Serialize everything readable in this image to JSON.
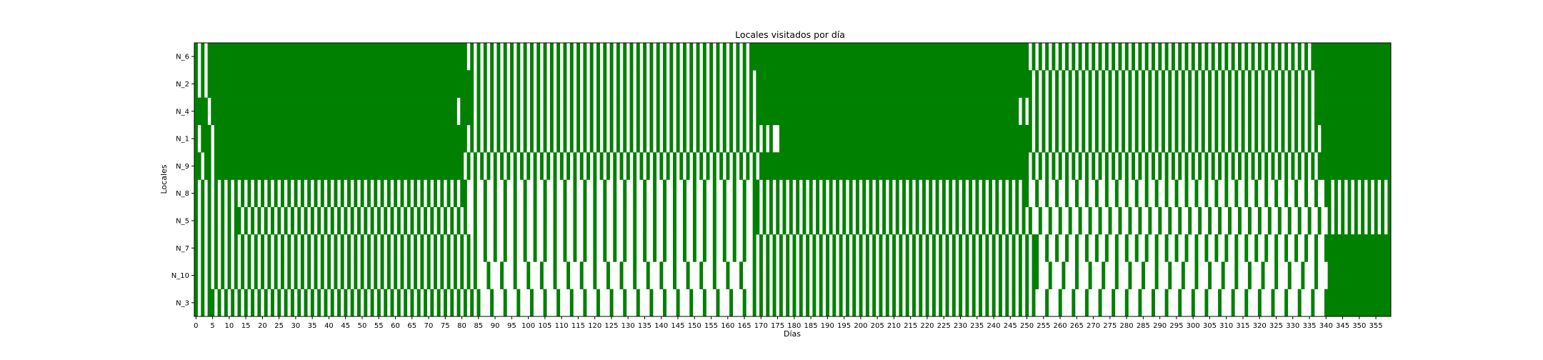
{
  "chart_data": {
    "type": "heatmap",
    "title": "Locales visitados por día",
    "xlabel": "Días",
    "ylabel": "Locales",
    "rows": [
      "N_6",
      "N_2",
      "N_4",
      "N_1",
      "N_9",
      "N_8",
      "N_5",
      "N_7",
      "N_10",
      "N_3"
    ],
    "x_range": [
      0,
      359
    ],
    "x_tick_step": 5,
    "grid": false,
    "legend": "none",
    "colors": {
      "visited": "#008000",
      "not_visited": "#ffffff"
    },
    "value_encoding": "1 = visitado (verde), 0 = no visitado (blanco)",
    "row_patterns": [
      {
        "row": "N_6",
        "segments": [
          {
            "from": 0,
            "to": 3,
            "pattern": [
              1,
              0
            ]
          },
          {
            "from": 4,
            "to": 80,
            "pattern": [
              1
            ]
          },
          {
            "from": 81,
            "to": 167,
            "pattern": [
              1,
              0
            ]
          },
          {
            "from": 168,
            "to": 249,
            "pattern": [
              1
            ]
          },
          {
            "from": 250,
            "to": 336,
            "pattern": [
              1,
              0
            ]
          },
          {
            "from": 337,
            "to": 359,
            "pattern": [
              1
            ]
          }
        ]
      },
      {
        "row": "N_2",
        "segments": [
          {
            "from": 0,
            "to": 3,
            "pattern": [
              1,
              0
            ]
          },
          {
            "from": 4,
            "to": 82,
            "pattern": [
              1
            ]
          },
          {
            "from": 83,
            "to": 168,
            "pattern": [
              1,
              0
            ]
          },
          {
            "from": 169,
            "to": 250,
            "pattern": [
              1
            ]
          },
          {
            "from": 251,
            "to": 337,
            "pattern": [
              1,
              0
            ]
          },
          {
            "from": 338,
            "to": 359,
            "pattern": [
              1
            ]
          }
        ]
      },
      {
        "row": "N_4",
        "segments": [
          {
            "from": 0,
            "to": 3,
            "pattern": [
              1
            ]
          },
          {
            "from": 4,
            "to": 4,
            "pattern": [
              0
            ]
          },
          {
            "from": 5,
            "to": 78,
            "pattern": [
              1
            ]
          },
          {
            "from": 79,
            "to": 79,
            "pattern": [
              0
            ]
          },
          {
            "from": 80,
            "to": 82,
            "pattern": [
              1
            ]
          },
          {
            "from": 83,
            "to": 168,
            "pattern": [
              1,
              0
            ]
          },
          {
            "from": 169,
            "to": 247,
            "pattern": [
              1
            ]
          },
          {
            "from": 248,
            "to": 337,
            "pattern": [
              0,
              1
            ]
          },
          {
            "from": 338,
            "to": 359,
            "pattern": [
              1
            ]
          }
        ]
      },
      {
        "row": "N_1",
        "segments": [
          {
            "from": 0,
            "to": 1,
            "pattern": [
              1,
              0
            ]
          },
          {
            "from": 2,
            "to": 4,
            "pattern": [
              1
            ]
          },
          {
            "from": 5,
            "to": 5,
            "pattern": [
              0
            ]
          },
          {
            "from": 6,
            "to": 80,
            "pattern": [
              1
            ]
          },
          {
            "from": 81,
            "to": 172,
            "pattern": [
              1,
              0
            ]
          },
          {
            "from": 173,
            "to": 175,
            "pattern": [
              1,
              0,
              0
            ]
          },
          {
            "from": 176,
            "to": 250,
            "pattern": [
              1
            ]
          },
          {
            "from": 251,
            "to": 339,
            "pattern": [
              1,
              0
            ]
          },
          {
            "from": 340,
            "to": 359,
            "pattern": [
              1
            ]
          }
        ]
      },
      {
        "row": "N_9",
        "segments": [
          {
            "from": 0,
            "to": 7,
            "pattern": [
              1,
              1,
              0
            ]
          },
          {
            "from": 8,
            "to": 79,
            "pattern": [
              1
            ]
          },
          {
            "from": 80,
            "to": 169,
            "pattern": [
              1,
              0
            ]
          },
          {
            "from": 170,
            "to": 249,
            "pattern": [
              1
            ]
          },
          {
            "from": 250,
            "to": 338,
            "pattern": [
              1,
              0
            ]
          },
          {
            "from": 339,
            "to": 359,
            "pattern": [
              1
            ]
          }
        ]
      },
      {
        "row": "N_8",
        "segments": [
          {
            "from": 0,
            "to": 80,
            "pattern": [
              1,
              0
            ]
          },
          {
            "from": 81,
            "to": 168,
            "pattern": [
              1,
              0,
              0
            ]
          },
          {
            "from": 169,
            "to": 249,
            "pattern": [
              1,
              0
            ]
          },
          {
            "from": 250,
            "to": 340,
            "pattern": [
              1,
              0,
              0
            ]
          },
          {
            "from": 341,
            "to": 359,
            "pattern": [
              1,
              0
            ]
          }
        ]
      },
      {
        "row": "N_5",
        "segments": [
          {
            "from": 0,
            "to": 12,
            "pattern": [
              1,
              0
            ]
          },
          {
            "from": 13,
            "to": 80,
            "pattern": [
              1,
              0
            ]
          },
          {
            "from": 81,
            "to": 168,
            "pattern": [
              1,
              0,
              0
            ]
          },
          {
            "from": 169,
            "to": 250,
            "pattern": [
              1,
              0
            ]
          },
          {
            "from": 251,
            "to": 340,
            "pattern": [
              1,
              0,
              0
            ]
          },
          {
            "from": 341,
            "to": 359,
            "pattern": [
              1,
              0
            ]
          }
        ]
      },
      {
        "row": "N_7",
        "segments": [
          {
            "from": 0,
            "to": 3,
            "pattern": [
              1,
              0
            ]
          },
          {
            "from": 4,
            "to": 83,
            "pattern": [
              1,
              0
            ]
          },
          {
            "from": 84,
            "to": 167,
            "pattern": [
              1,
              0,
              0
            ]
          },
          {
            "from": 168,
            "to": 252,
            "pattern": [
              1,
              0
            ]
          },
          {
            "from": 253,
            "to": 340,
            "pattern": [
              1,
              0,
              0
            ]
          },
          {
            "from": 341,
            "to": 359,
            "pattern": [
              1
            ]
          }
        ]
      },
      {
        "row": "N_10",
        "segments": [
          {
            "from": 0,
            "to": 5,
            "pattern": [
              1,
              0
            ]
          },
          {
            "from": 6,
            "to": 83,
            "pattern": [
              1,
              0
            ]
          },
          {
            "from": 84,
            "to": 167,
            "pattern": [
              1,
              0,
              0,
              0
            ]
          },
          {
            "from": 168,
            "to": 252,
            "pattern": [
              1,
              0
            ]
          },
          {
            "from": 253,
            "to": 340,
            "pattern": [
              1,
              0,
              0,
              0
            ]
          },
          {
            "from": 341,
            "to": 359,
            "pattern": [
              1
            ]
          }
        ]
      },
      {
        "row": "N_3",
        "segments": [
          {
            "from": 0,
            "to": 4,
            "pattern": [
              1,
              0
            ]
          },
          {
            "from": 5,
            "to": 84,
            "pattern": [
              1,
              0
            ]
          },
          {
            "from": 85,
            "to": 167,
            "pattern": [
              1,
              0,
              0,
              0
            ]
          },
          {
            "from": 168,
            "to": 251,
            "pattern": [
              1,
              0
            ]
          },
          {
            "from": 252,
            "to": 340,
            "pattern": [
              1,
              0,
              0,
              0
            ]
          },
          {
            "from": 341,
            "to": 359,
            "pattern": [
              1
            ]
          }
        ]
      }
    ]
  }
}
